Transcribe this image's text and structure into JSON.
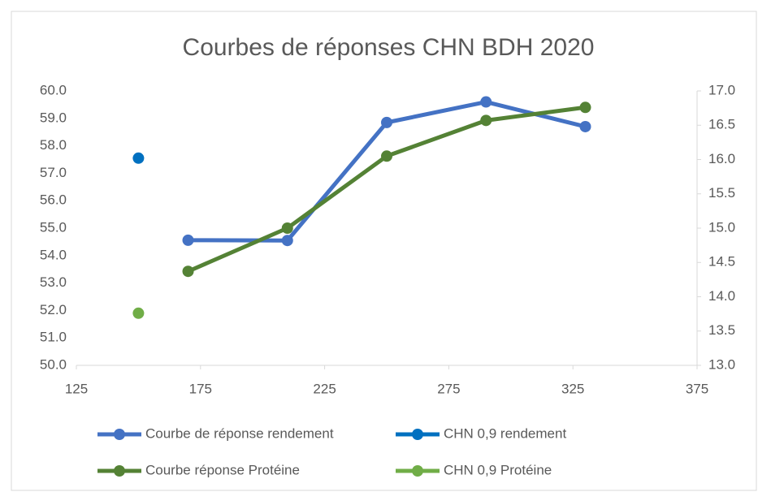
{
  "chart_data": {
    "type": "scatter",
    "title": "Courbes de réponses CHN BDH 2020",
    "xlim": [
      125,
      375
    ],
    "xticks": [
      125,
      175,
      225,
      275,
      325,
      375
    ],
    "ylim": [
      50,
      60
    ],
    "yticks": [
      {
        "value": 50,
        "label": "50.0"
      },
      {
        "value": 51,
        "label": "51.0"
      },
      {
        "value": 52,
        "label": "52.0"
      },
      {
        "value": 53,
        "label": "53.0"
      },
      {
        "value": 54,
        "label": "54.0"
      },
      {
        "value": 55,
        "label": "55.0"
      },
      {
        "value": 56,
        "label": "56.0"
      },
      {
        "value": 57,
        "label": "57.0"
      },
      {
        "value": 58,
        "label": "58.0"
      },
      {
        "value": 59,
        "label": "59.0"
      },
      {
        "value": 60,
        "label": "60.0"
      }
    ],
    "y2lim": [
      13,
      17
    ],
    "y2ticks": [
      {
        "value": 13,
        "label": "13.0"
      },
      13.5,
      {
        "value": 14,
        "label": "14.0"
      },
      14.5,
      {
        "value": 15,
        "label": "15.0"
      },
      15.5,
      {
        "value": 16,
        "label": "16.0"
      },
      16.5,
      {
        "value": 17,
        "label": "17.0"
      }
    ],
    "grid": false,
    "series": [
      {
        "name": "Courbe de réponse rendement",
        "color": "#4472c4",
        "line": true,
        "x": [
          170,
          210,
          250,
          290,
          330
        ],
        "values": [
          54.56,
          54.55,
          58.85,
          59.6,
          58.7
        ]
      },
      {
        "name": "CHN 0,9 rendement",
        "color": "#0070c0",
        "line": false,
        "x": [
          150
        ],
        "values": [
          57.55
        ]
      },
      {
        "name": "Courbe réponse Protéine",
        "color": "#548235",
        "line": true,
        "axis": "y2",
        "x": [
          170,
          210,
          250,
          290,
          330
        ],
        "values": [
          14.37,
          15.0,
          16.05,
          16.57,
          16.76
        ]
      },
      {
        "name": "CHN 0,9 Protéine",
        "color": "#70ad47",
        "line": false,
        "axis": "y2",
        "x": [
          150
        ],
        "values": [
          13.76
        ]
      }
    ]
  }
}
